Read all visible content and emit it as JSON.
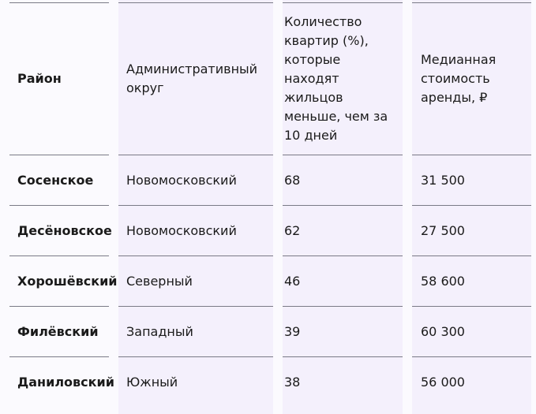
{
  "table": {
    "headers": [
      "Район",
      "Административный округ",
      "Количество квартир (%), которые находят жильцов меньше, чем за 10 дней",
      "Медианная стоимость аренды, ₽"
    ],
    "rows": [
      [
        "Сосенское",
        "Новомосковский",
        "68",
        "31 500"
      ],
      [
        "Десёновское",
        "Новомосковский",
        "62",
        "27 500"
      ],
      [
        "Хорошёвский",
        "Северный",
        "46",
        "58 600"
      ],
      [
        "Филёвский",
        "Западный",
        "39",
        "60 300"
      ],
      [
        "Даниловский",
        "Южный",
        "38",
        "56 000"
      ]
    ]
  }
}
